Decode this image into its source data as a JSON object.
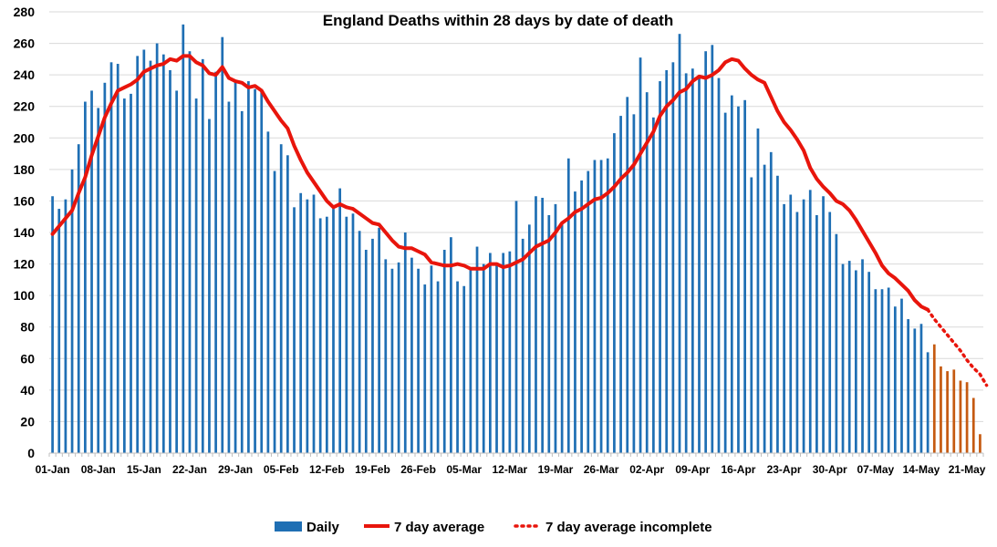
{
  "chart_data": {
    "type": "bar",
    "title": "England Deaths within 28 days by date of death",
    "xlabel": "",
    "ylabel": "",
    "ylim": [
      0,
      280
    ],
    "ytick_step": 20,
    "grid": true,
    "x_tick_labels": [
      "01-Jan",
      "08-Jan",
      "15-Jan",
      "22-Jan",
      "29-Jan",
      "05-Feb",
      "12-Feb",
      "19-Feb",
      "26-Feb",
      "05-Mar",
      "12-Mar",
      "19-Mar",
      "26-Mar",
      "02-Apr",
      "09-Apr",
      "16-Apr",
      "23-Apr",
      "30-Apr",
      "07-May",
      "14-May",
      "21-May"
    ],
    "colors": {
      "daily": "#1f6fb4",
      "daily_incomplete": "#c55a11",
      "average": "#e8150c",
      "grid": "#d9d9d9"
    },
    "series": [
      {
        "name": "Daily",
        "note": "days 1-135 complete (blue), days 136-146 incomplete (orange)",
        "values": [
          163,
          155,
          161,
          180,
          196,
          223,
          230,
          219,
          235,
          248,
          247,
          225,
          228,
          252,
          256,
          249,
          260,
          253,
          243,
          230,
          272,
          255,
          225,
          250,
          212,
          242,
          264,
          223,
          236,
          217,
          236,
          231,
          230,
          204,
          179,
          196,
          189,
          156,
          165,
          161,
          164,
          149,
          150,
          155,
          168,
          150,
          152,
          141,
          129,
          136,
          143,
          123,
          117,
          121,
          140,
          124,
          117,
          107,
          119,
          109,
          129,
          137,
          109,
          106,
          118,
          131,
          120,
          127,
          120,
          127,
          128,
          160,
          136,
          145,
          163,
          162,
          151,
          158,
          145,
          187,
          166,
          173,
          179,
          186,
          186,
          187,
          203,
          214,
          226,
          215,
          251,
          229,
          213,
          236,
          243,
          248,
          266,
          241,
          244,
          238,
          255,
          259,
          238,
          216,
          227,
          220,
          224,
          175,
          206,
          183,
          191,
          176,
          158,
          164,
          153,
          161,
          167,
          151,
          163,
          153,
          139,
          120,
          122,
          116,
          123,
          115,
          104,
          104,
          105,
          93,
          98,
          85,
          79,
          82,
          64,
          69,
          55,
          52,
          53,
          46,
          45,
          35,
          12
        ]
      },
      {
        "name": "7 day average",
        "values": [
          139,
          144,
          149,
          154,
          165,
          175,
          189,
          201,
          213,
          222,
          230,
          232,
          234,
          237,
          242,
          244,
          246,
          247,
          250,
          249,
          252,
          252,
          248,
          246,
          241,
          240,
          245,
          238,
          236,
          235,
          232,
          233,
          230,
          223,
          217,
          211,
          206,
          195,
          186,
          178,
          172,
          166,
          160,
          156,
          158,
          156,
          155,
          152,
          149,
          146,
          145,
          140,
          135,
          131,
          130,
          130,
          128,
          126,
          121,
          120,
          119,
          119,
          120,
          119,
          117,
          117,
          117,
          120,
          120,
          118,
          119,
          121,
          123,
          127,
          131,
          133,
          135,
          140,
          146,
          149,
          153,
          155,
          158,
          161,
          162,
          165,
          169,
          174,
          178,
          183,
          190,
          197,
          204,
          214,
          220,
          224,
          229,
          231,
          236,
          239,
          238,
          240,
          243,
          248,
          250,
          249,
          244,
          240,
          237,
          235,
          226,
          217,
          210,
          205,
          199,
          192,
          181,
          174,
          169,
          165,
          160,
          158,
          154,
          148,
          141,
          134,
          127,
          119,
          114,
          111,
          107,
          103,
          97,
          93,
          91
        ]
      },
      {
        "name": "7 day average incomplete",
        "values": [
          91,
          85,
          80,
          75,
          70,
          65,
          59,
          54,
          50,
          43
        ]
      }
    ],
    "legend": [
      {
        "label": "Daily",
        "style": "bar"
      },
      {
        "label": "7 day average",
        "style": "solid-line"
      },
      {
        "label": "7 day average incomplete",
        "style": "dotted-line"
      }
    ],
    "legend_position": "bottom-center"
  }
}
